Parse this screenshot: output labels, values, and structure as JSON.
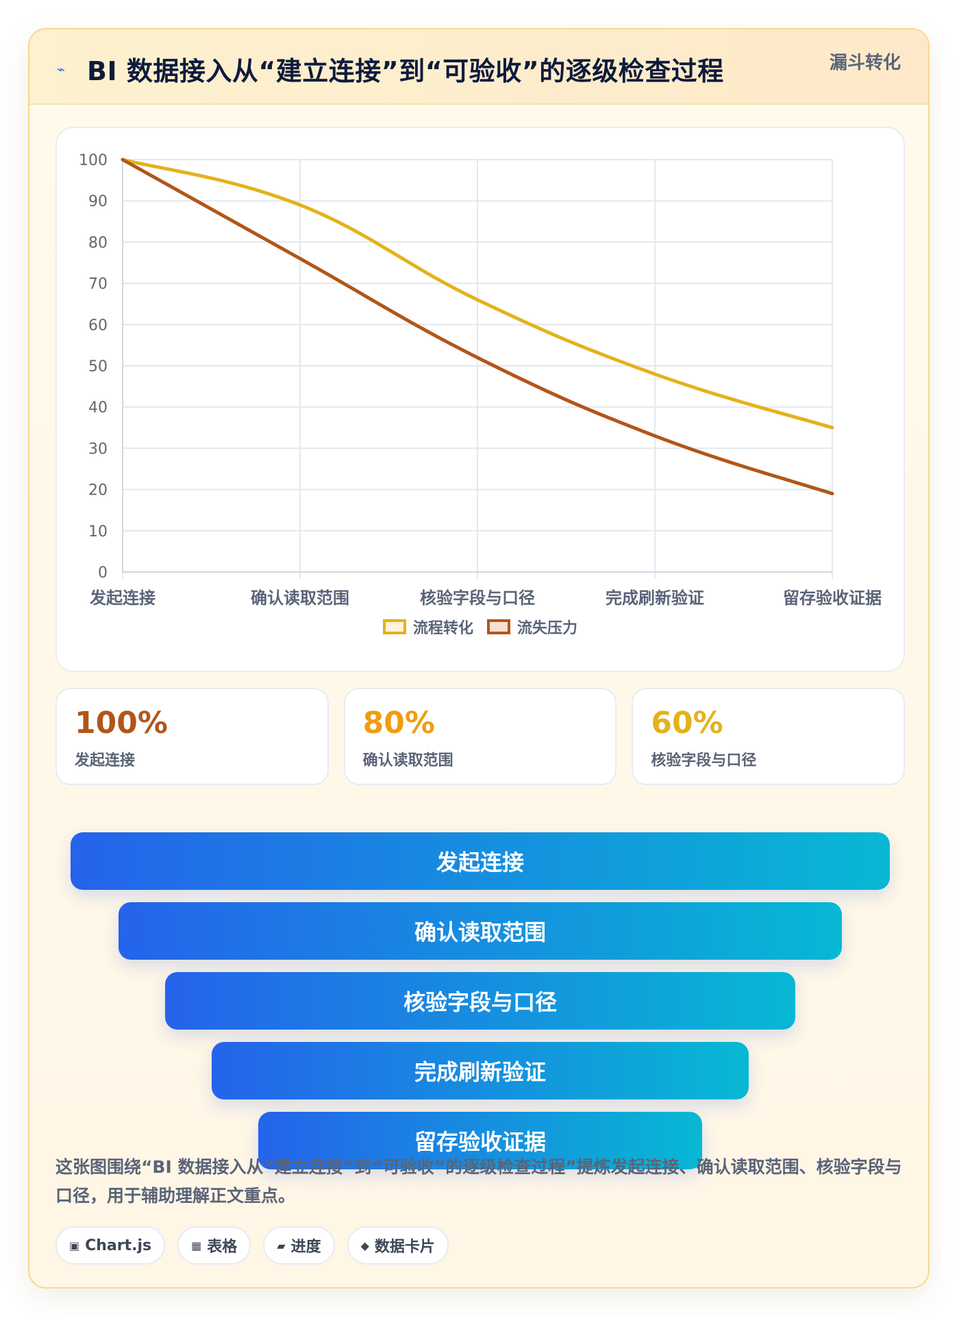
{
  "header": {
    "icon": "lightning-icon",
    "title": "BI 数据接入从“建立连接”到“可验收”的逐级检查过程",
    "tag": "漏斗转化"
  },
  "chart_data": {
    "type": "line",
    "x": [
      "发起连接",
      "确认读取范围",
      "核验字段与口径",
      "完成刷新验证",
      "留存验收证据"
    ],
    "series": [
      {
        "name": "流程转化",
        "values": [
          100,
          89,
          66,
          48,
          35
        ],
        "color": "#e3b21c"
      },
      {
        "name": "流失压力",
        "values": [
          100,
          76,
          52,
          33,
          19
        ],
        "color": "#b2561a"
      }
    ],
    "ylim": [
      0,
      100
    ],
    "yticks": [
      0,
      10,
      20,
      30,
      40,
      50,
      60,
      70,
      80,
      90,
      100
    ],
    "grid": true,
    "legend": "bottom",
    "curve": "smooth"
  },
  "stats": [
    {
      "value": "100%",
      "label": "发起连接",
      "color": "#b2561a"
    },
    {
      "value": "80%",
      "label": "确认读取范围",
      "color": "#ef9d12"
    },
    {
      "value": "60%",
      "label": "核验字段与口径",
      "color": "#e3b21c"
    }
  ],
  "funnel": [
    "发起连接",
    "确认读取范围",
    "核验字段与口径",
    "完成刷新验证",
    "留存验收证据"
  ],
  "note": "这张图围绕“BI 数据接入从“建立连接”到“可验收”的逐级检查过程”提炼发起连接、确认读取范围、核验字段与口径，用于辅助理解正文重点。",
  "chips": [
    {
      "icon": "chart-icon",
      "glyph": "▣",
      "label": "Chart.js"
    },
    {
      "icon": "table-icon",
      "glyph": "▦",
      "label": "表格"
    },
    {
      "icon": "progress-icon",
      "glyph": "▰",
      "label": "进度"
    },
    {
      "icon": "data-card-icon",
      "glyph": "◆",
      "label": "数据卡片"
    }
  ]
}
